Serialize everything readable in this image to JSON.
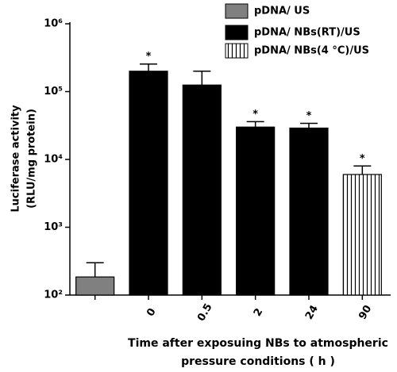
{
  "chart_data": {
    "type": "bar",
    "categories": [
      null,
      "0",
      "0.5",
      "2",
      "24",
      "90"
    ],
    "series": [
      {
        "name": "pDNA/ US",
        "color": "#808080",
        "values": [
          185,
          null,
          null,
          null,
          null,
          null
        ],
        "errors": [
          115,
          null,
          null,
          null,
          null,
          null
        ]
      },
      {
        "name": "pDNA/ NBs(RT)/US",
        "color": "#000000",
        "values": [
          null,
          200000,
          125000,
          30000,
          29000,
          null
        ],
        "errors": [
          null,
          55000,
          75000,
          6000,
          5000,
          null
        ]
      },
      {
        "name": "pDNA/ NBs(4 °C)/US",
        "color": "#000000",
        "pattern": "vertical-lines",
        "values": [
          null,
          null,
          null,
          null,
          null,
          6000
        ],
        "errors": [
          null,
          null,
          null,
          null,
          null,
          2000
        ]
      }
    ],
    "annotations": [
      {
        "text": "*",
        "x": "0"
      },
      {
        "text": "*",
        "x": "2"
      },
      {
        "text": "*",
        "x": "24"
      },
      {
        "text": "*",
        "x": "90"
      }
    ],
    "ylabel": [
      "Luciferase activity",
      "(RLU/mg protein)"
    ],
    "xlabel": [
      "Time after exposuing NBs to atmospheric",
      "pressure conditions ( h )"
    ],
    "ylim": [
      100,
      1000000
    ],
    "yticks": [
      {
        "value": 100,
        "label": "10²"
      },
      {
        "value": 1000,
        "label": "10³"
      },
      {
        "value": 10000,
        "label": "10⁴"
      },
      {
        "value": 100000,
        "label": "10⁵"
      },
      {
        "value": 1000000,
        "label": "10⁶"
      }
    ],
    "log_scale": true,
    "legend": "top-right"
  }
}
